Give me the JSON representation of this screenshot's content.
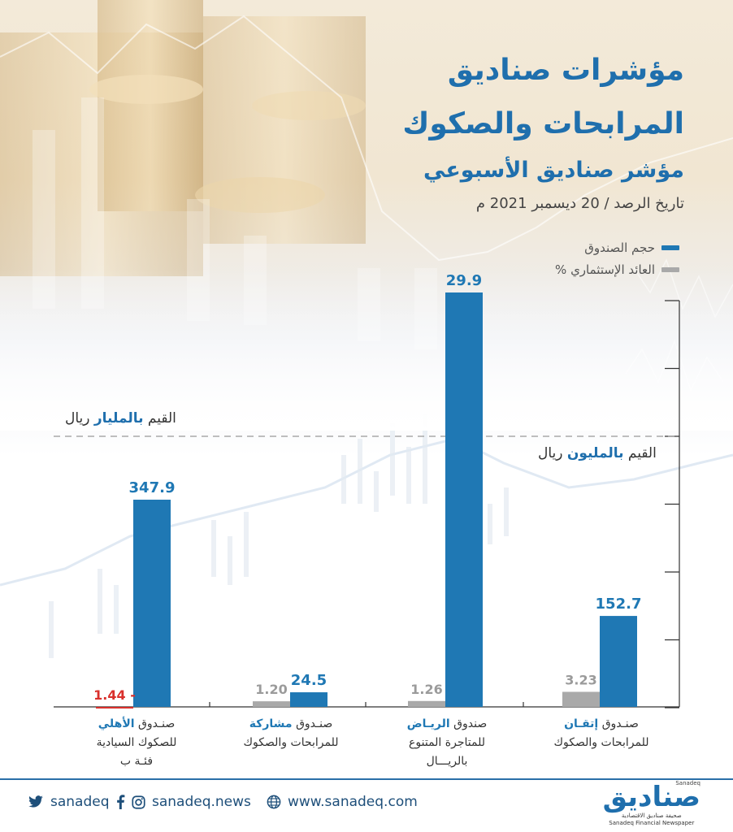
{
  "header": {
    "title_line1": "مؤشرات صناديق",
    "title_line2": "المرابحات والصكوك",
    "subtitle": "مؤشر صناديق الأسبوعي",
    "date": "تاريخ الرصد / 20 ديسمبر 2021 م"
  },
  "legend": {
    "size_label": "حجم الصندوق",
    "return_label": "العائد الإستثماري %"
  },
  "units": {
    "billion_prefix": "القيم",
    "billion_highlight": "بالمليار",
    "billion_suffix": "ريال",
    "million_prefix": "القيم",
    "million_highlight": "بالمليون",
    "million_suffix": "ريال"
  },
  "colors": {
    "size": "#1f78b4",
    "return": "#a9a9a9",
    "negative": "#d9302c",
    "title": "#1f6fad"
  },
  "chart_data": {
    "type": "bar",
    "categories": [
      "صندوق الأهلي للصكوك السيادية فئة ب",
      "صندوق مشاركة للمرابحات والصكوك",
      "صندوق الرياض للمتاجرة المتنوع بالريال",
      "صندوق إتقان للمرابحات والصكوك"
    ],
    "series": [
      {
        "name": "حجم الصندوق",
        "values": [
          347.9,
          24.5,
          29.9,
          152.7
        ],
        "labels": [
          "347.9",
          "24.5",
          "29.9",
          "152.7"
        ],
        "units": [
          "مليون",
          "مليون",
          "مليار",
          "مليون"
        ]
      },
      {
        "name": "العائد الإستثماري %",
        "values": [
          -1.44,
          1.2,
          1.26,
          3.23
        ],
        "labels": [
          "1.44 -",
          "1.20",
          "1.26",
          "3.23"
        ]
      }
    ]
  },
  "categories_display": [
    {
      "l1a": "صنـدوق",
      "l1b": "الأهلي",
      "l2": "للصكوك السيادية",
      "l3": "فئـة ب"
    },
    {
      "l1a": "صنـدوق",
      "l1b": "مشاركة",
      "l2": "للمرابحات والصكوك",
      "l3": ""
    },
    {
      "l1a": "صندوق",
      "l1b": "الريـاض",
      "l2": "للمتاجرة المتنوع",
      "l3": "بالريـــال"
    },
    {
      "l1a": "صنـدوق",
      "l1b": "إتقـان",
      "l2": "للمرابحات والصكوك",
      "l3": ""
    }
  ],
  "footer": {
    "twitter": "sanadeq",
    "instagram": "sanadeq.news",
    "website": "www.sanadeq.com",
    "brand_name": "صناديق",
    "brand_tag": "صحيفة صناديق الاقتصادية",
    "brand_en": "Sanadeq Financial Newspaper",
    "brand_small": "Sanadeq"
  }
}
